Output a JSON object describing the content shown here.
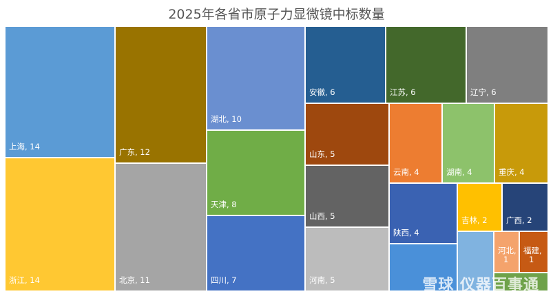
{
  "chart_data": {
    "type": "treemap",
    "title": "2025年各省市原子力显微镜中标数量",
    "nodes": [
      {
        "name": "上海",
        "value": 14,
        "color": "#5b9bd5"
      },
      {
        "name": "浙江",
        "value": 14,
        "color": "#ffc832"
      },
      {
        "name": "广东",
        "value": 12,
        "color": "#997300"
      },
      {
        "name": "北京",
        "value": 11,
        "color": "#a5a5a5"
      },
      {
        "name": "湖北",
        "value": 10,
        "color": "#6a8fd0"
      },
      {
        "name": "天津",
        "value": 8,
        "color": "#70ad47"
      },
      {
        "name": "四川",
        "value": 7,
        "color": "#4472c4"
      },
      {
        "name": "安徽",
        "value": 6,
        "color": "#255e91"
      },
      {
        "name": "江苏",
        "value": 6,
        "color": "#43682b"
      },
      {
        "name": "辽宁",
        "value": 6,
        "color": "#7f7f7f"
      },
      {
        "name": "山东",
        "value": 5,
        "color": "#9e480e"
      },
      {
        "name": "山西",
        "value": 5,
        "color": "#636363"
      },
      {
        "name": "河南",
        "value": 5,
        "color": "#bcbcbc"
      },
      {
        "name": "云南",
        "value": 4,
        "color": "#ed7d31"
      },
      {
        "name": "湖南",
        "value": 4,
        "color": "#8dc26b"
      },
      {
        "name": "重庆",
        "value": 4,
        "color": "#c89a0a"
      },
      {
        "name": "陕西",
        "value": 4,
        "color": "#3a62b2"
      },
      {
        "name": "吉林",
        "value": 2,
        "color": "#ffc000"
      },
      {
        "name": "广西",
        "value": 2,
        "color": "#264478"
      },
      {
        "name": "河北",
        "value": 1,
        "color": "#f4a36c"
      },
      {
        "name": "福建",
        "value": 1,
        "color": "#c65a14"
      },
      {
        "name": "",
        "value": 2,
        "color": "#4a90d9"
      },
      {
        "name": "",
        "value": 2,
        "color": "#80b3e0"
      },
      {
        "name": "",
        "value": 1,
        "color": "#6fa24a"
      }
    ]
  },
  "watermark": "雪球 仪器百事通"
}
